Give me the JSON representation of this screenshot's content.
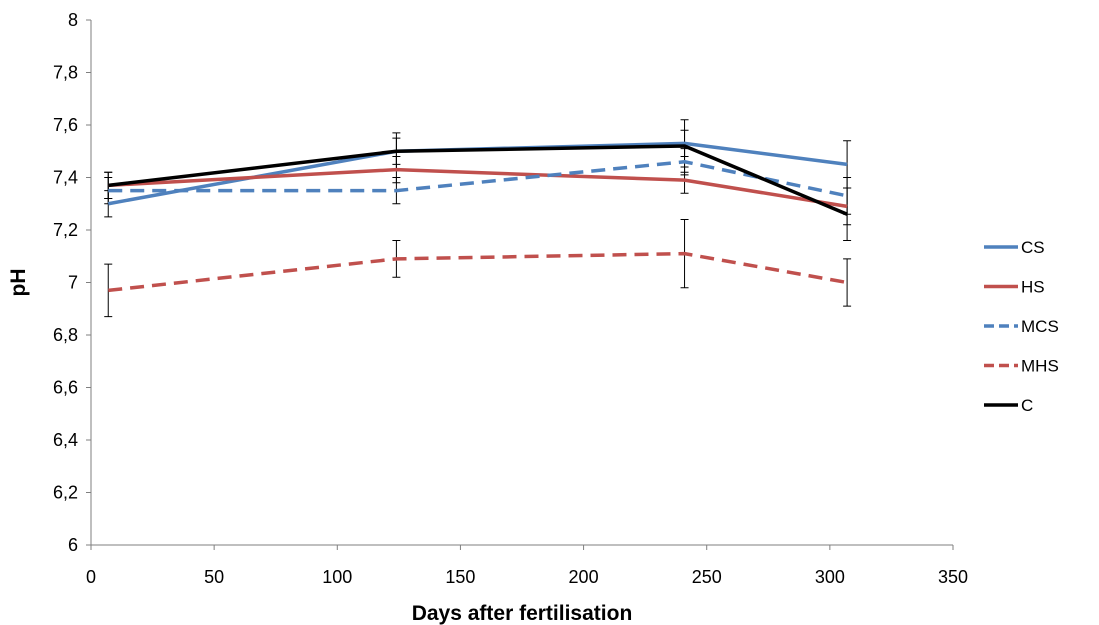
{
  "chart_data": {
    "type": "line",
    "title": "",
    "xlabel": "Days after fertilisation",
    "ylabel": "pH",
    "xlim": [
      0,
      350
    ],
    "ylim": [
      6,
      8
    ],
    "x_ticks": [
      0,
      50,
      100,
      150,
      200,
      250,
      300,
      350
    ],
    "x_tick_labels": [
      "0",
      "50",
      "100",
      "150",
      "200",
      "250",
      "300",
      "350"
    ],
    "y_ticks": [
      6,
      6.2,
      6.4,
      6.6,
      6.8,
      7,
      7.2,
      7.4,
      7.6,
      7.8,
      8
    ],
    "y_tick_labels": [
      "6",
      "6,2",
      "6,4",
      "6,6",
      "6,8",
      "7",
      "7,2",
      "7,4",
      "7,6",
      "7,8",
      "8"
    ],
    "grid": false,
    "legend_position": "right",
    "x": [
      7,
      124,
      241,
      307
    ],
    "series": [
      {
        "name": "CS",
        "color": "#4F81BD",
        "dash": "solid",
        "values": [
          7.3,
          7.5,
          7.53,
          7.45
        ],
        "errors": [
          0.05,
          0.05,
          0.05,
          0.09
        ]
      },
      {
        "name": "HS",
        "color": "#C0504D",
        "dash": "solid",
        "values": [
          7.37,
          7.43,
          7.39,
          7.29
        ],
        "errors": [
          0.05,
          0.05,
          0.05,
          0.07
        ]
      },
      {
        "name": "MCS",
        "color": "#4F81BD",
        "dash": "dashed",
        "values": [
          7.35,
          7.35,
          7.46,
          7.33
        ],
        "errors": [
          0.05,
          0.05,
          0.05,
          0.07
        ]
      },
      {
        "name": "MHS",
        "color": "#C0504D",
        "dash": "dashed",
        "values": [
          6.97,
          7.09,
          7.11,
          7.0
        ],
        "errors": [
          0.1,
          0.07,
          0.13,
          0.09
        ]
      },
      {
        "name": "C",
        "color": "#000000",
        "dash": "solid",
        "values": [
          7.37,
          7.5,
          7.52,
          7.26
        ],
        "errors": [
          0.05,
          0.07,
          0.1,
          0.1
        ]
      }
    ]
  }
}
